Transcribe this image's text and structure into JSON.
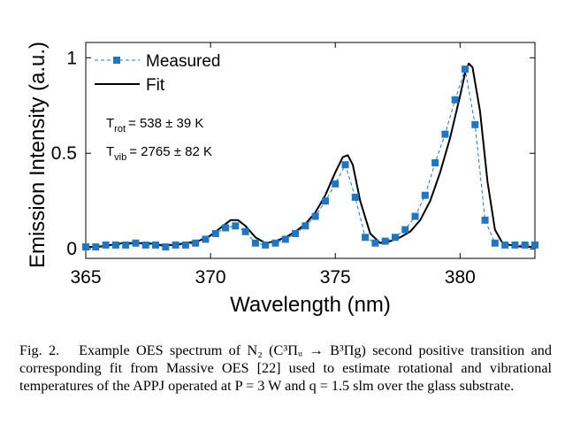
{
  "chart_data": {
    "type": "line",
    "xlabel": "Wavelength (nm)",
    "ylabel": "Emission Intensity (a.u.)",
    "xlim": [
      365,
      383
    ],
    "ylim": [
      -0.05,
      1.08
    ],
    "xticks": [
      365,
      370,
      375,
      380
    ],
    "xtick_labels": [
      "365",
      "370",
      "375",
      "380"
    ],
    "yticks": [
      0,
      0.5,
      1
    ],
    "ytick_labels": [
      "0",
      "0.5",
      "1"
    ],
    "legend_position": "top-left",
    "grid": false,
    "colors": {
      "measured": "#1f77c4",
      "fit": "#000000"
    },
    "series": [
      {
        "name": "Measured",
        "style": "dashed line with square markers",
        "x": [
          365.0,
          365.4,
          365.8,
          366.2,
          366.6,
          367.0,
          367.4,
          367.8,
          368.2,
          368.6,
          369.0,
          369.4,
          369.8,
          370.2,
          370.6,
          371.0,
          371.4,
          371.8,
          372.2,
          372.6,
          373.0,
          373.4,
          373.8,
          374.2,
          374.6,
          375.0,
          375.4,
          375.8,
          376.2,
          376.6,
          377.0,
          377.4,
          377.8,
          378.2,
          378.6,
          379.0,
          379.4,
          379.8,
          380.2,
          380.6,
          381.0,
          381.4,
          381.8,
          382.2,
          382.6,
          383.0
        ],
        "y": [
          0.01,
          0.01,
          0.02,
          0.02,
          0.02,
          0.03,
          0.02,
          0.02,
          0.01,
          0.02,
          0.02,
          0.03,
          0.05,
          0.08,
          0.11,
          0.12,
          0.09,
          0.03,
          0.02,
          0.03,
          0.05,
          0.08,
          0.12,
          0.17,
          0.25,
          0.34,
          0.44,
          0.27,
          0.06,
          0.03,
          0.04,
          0.06,
          0.1,
          0.17,
          0.28,
          0.45,
          0.6,
          0.78,
          0.94,
          0.65,
          0.15,
          0.03,
          0.02,
          0.02,
          0.02,
          0.02
        ]
      },
      {
        "name": "Fit",
        "style": "solid line",
        "x": [
          365.0,
          365.5,
          366.0,
          366.5,
          367.0,
          367.5,
          368.0,
          368.5,
          369.0,
          369.5,
          370.0,
          370.4,
          370.8,
          371.1,
          371.4,
          371.8,
          372.2,
          372.6,
          373.0,
          373.4,
          373.8,
          374.2,
          374.6,
          375.0,
          375.3,
          375.5,
          375.7,
          376.0,
          376.4,
          376.8,
          377.2,
          377.6,
          378.0,
          378.4,
          378.8,
          379.2,
          379.6,
          380.0,
          380.2,
          380.35,
          380.5,
          380.8,
          381.1,
          381.4,
          381.7,
          382.0,
          382.5,
          383.0
        ],
        "y": [
          0.01,
          0.01,
          0.02,
          0.03,
          0.03,
          0.03,
          0.02,
          0.02,
          0.03,
          0.04,
          0.07,
          0.11,
          0.15,
          0.15,
          0.12,
          0.06,
          0.03,
          0.04,
          0.06,
          0.09,
          0.13,
          0.19,
          0.28,
          0.4,
          0.48,
          0.49,
          0.44,
          0.25,
          0.08,
          0.03,
          0.04,
          0.06,
          0.09,
          0.15,
          0.25,
          0.4,
          0.58,
          0.8,
          0.92,
          0.97,
          0.95,
          0.72,
          0.35,
          0.1,
          0.03,
          0.02,
          0.01,
          0.01
        ]
      }
    ],
    "legend": [
      {
        "label": "Measured"
      },
      {
        "label": "Fit"
      }
    ],
    "annotations": [
      {
        "base": "T",
        "sub": "rot",
        "value": "= 538 ± 39 K"
      },
      {
        "base": "T",
        "sub": "vib",
        "value": "= 2765 ± 82 K"
      }
    ]
  },
  "caption": {
    "label": "Fig. 2.",
    "text": "Example OES spectrum of N₂ (C³Πᵤ → B³Πg) second positive transition and corresponding fit from Massive OES [22] used to estimate rotational and vibrational temperatures of the APPJ operated at P = 3 W and q = 1.5 slm over the glass substrate."
  }
}
